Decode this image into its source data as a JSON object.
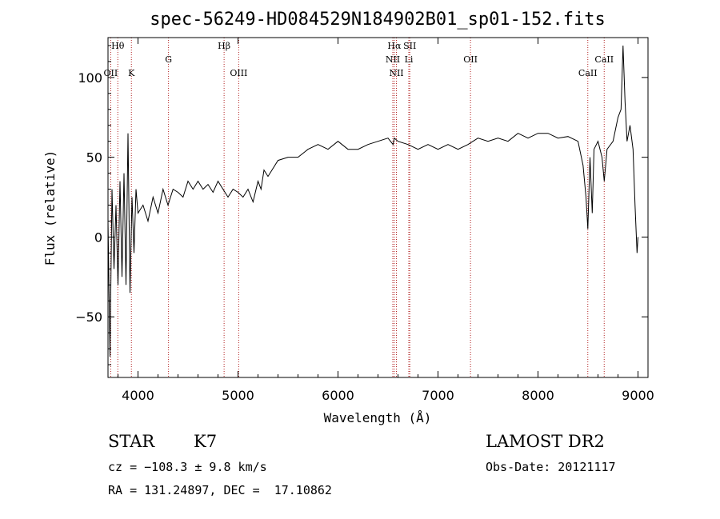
{
  "chart_data": {
    "type": "line",
    "title": "spec-56249-HD084529N184902B01_sp01-152.fits",
    "xlabel": "Wavelength (Å)",
    "ylabel": "Flux (relative)",
    "xlim": [
      3700,
      9100
    ],
    "ylim": [
      -88,
      125
    ],
    "xticks": [
      4000,
      5000,
      6000,
      7000,
      8000,
      9000
    ],
    "yticks": [
      -50,
      0,
      50,
      100
    ],
    "grid": false,
    "series": [
      {
        "color": "#000000",
        "x": [
          3700,
          3720,
          3740,
          3760,
          3780,
          3800,
          3820,
          3840,
          3860,
          3880,
          3900,
          3920,
          3940,
          3960,
          3980,
          4000,
          4050,
          4100,
          4150,
          4200,
          4250,
          4300,
          4350,
          4400,
          4450,
          4500,
          4550,
          4600,
          4650,
          4700,
          4750,
          4800,
          4850,
          4900,
          4950,
          5000,
          5050,
          5100,
          5150,
          5200,
          5230,
          5260,
          5300,
          5400,
          5500,
          5600,
          5700,
          5800,
          5900,
          6000,
          6100,
          6200,
          6300,
          6400,
          6500,
          6550,
          6563,
          6600,
          6700,
          6800,
          6900,
          7000,
          7100,
          7200,
          7300,
          7400,
          7500,
          7600,
          7700,
          7800,
          7900,
          8000,
          8100,
          8200,
          8300,
          8400,
          8450,
          8480,
          8498,
          8520,
          8542,
          8560,
          8600,
          8640,
          8662,
          8690,
          8750,
          8800,
          8830,
          8850,
          8870,
          8890,
          8920,
          8950,
          8970,
          8990,
          9000
        ],
        "y": [
          10,
          -75,
          30,
          -20,
          20,
          -30,
          35,
          -25,
          40,
          -30,
          65,
          -35,
          25,
          -10,
          30,
          15,
          20,
          10,
          25,
          15,
          30,
          20,
          30,
          28,
          25,
          35,
          30,
          35,
          30,
          33,
          28,
          35,
          30,
          25,
          30,
          28,
          25,
          30,
          22,
          35,
          30,
          42,
          38,
          48,
          50,
          50,
          55,
          58,
          55,
          60,
          55,
          55,
          58,
          60,
          62,
          58,
          62,
          60,
          58,
          55,
          58,
          55,
          58,
          55,
          58,
          62,
          60,
          62,
          60,
          65,
          62,
          65,
          65,
          62,
          63,
          60,
          45,
          25,
          5,
          50,
          15,
          55,
          60,
          50,
          35,
          55,
          60,
          75,
          80,
          120,
          85,
          60,
          70,
          55,
          20,
          -10,
          0
        ]
      }
    ],
    "spectral_lines": [
      {
        "label": "Hθ",
        "wavelength": 3798,
        "row": 1
      },
      {
        "label": "OII",
        "wavelength": 3727,
        "row": 3
      },
      {
        "label": "K",
        "wavelength": 3934,
        "row": 3
      },
      {
        "label": "G",
        "wavelength": 4305,
        "row": 2
      },
      {
        "label": "Hβ",
        "wavelength": 4861,
        "row": 1
      },
      {
        "label": "OIII",
        "wavelength": 5007,
        "row": 3
      },
      {
        "label": "Hα",
        "wavelength": 6563,
        "row": 1
      },
      {
        "label": "SII",
        "wavelength": 6718,
        "row": 1
      },
      {
        "label": "NII",
        "wavelength": 6548,
        "row": 2
      },
      {
        "label": "Li",
        "wavelength": 6708,
        "row": 2
      },
      {
        "label": "NII",
        "wavelength": 6584,
        "row": 3
      },
      {
        "label": "OII",
        "wavelength": 7325,
        "row": 2
      },
      {
        "label": "CaII",
        "wavelength": 8498,
        "row": 3
      },
      {
        "label": "CaII",
        "wavelength": 8662,
        "row": 2
      }
    ],
    "line_marker_color": "#b22222"
  },
  "info": {
    "object_class": "STAR",
    "subclass": "K7",
    "survey": "LAMOST DR2",
    "redshift": "cz = −108.3 ± 9.8 km/s",
    "obs_date": "Obs-Date: 20121117",
    "coords": "RA = 131.24897, DEC =  17.10862"
  }
}
